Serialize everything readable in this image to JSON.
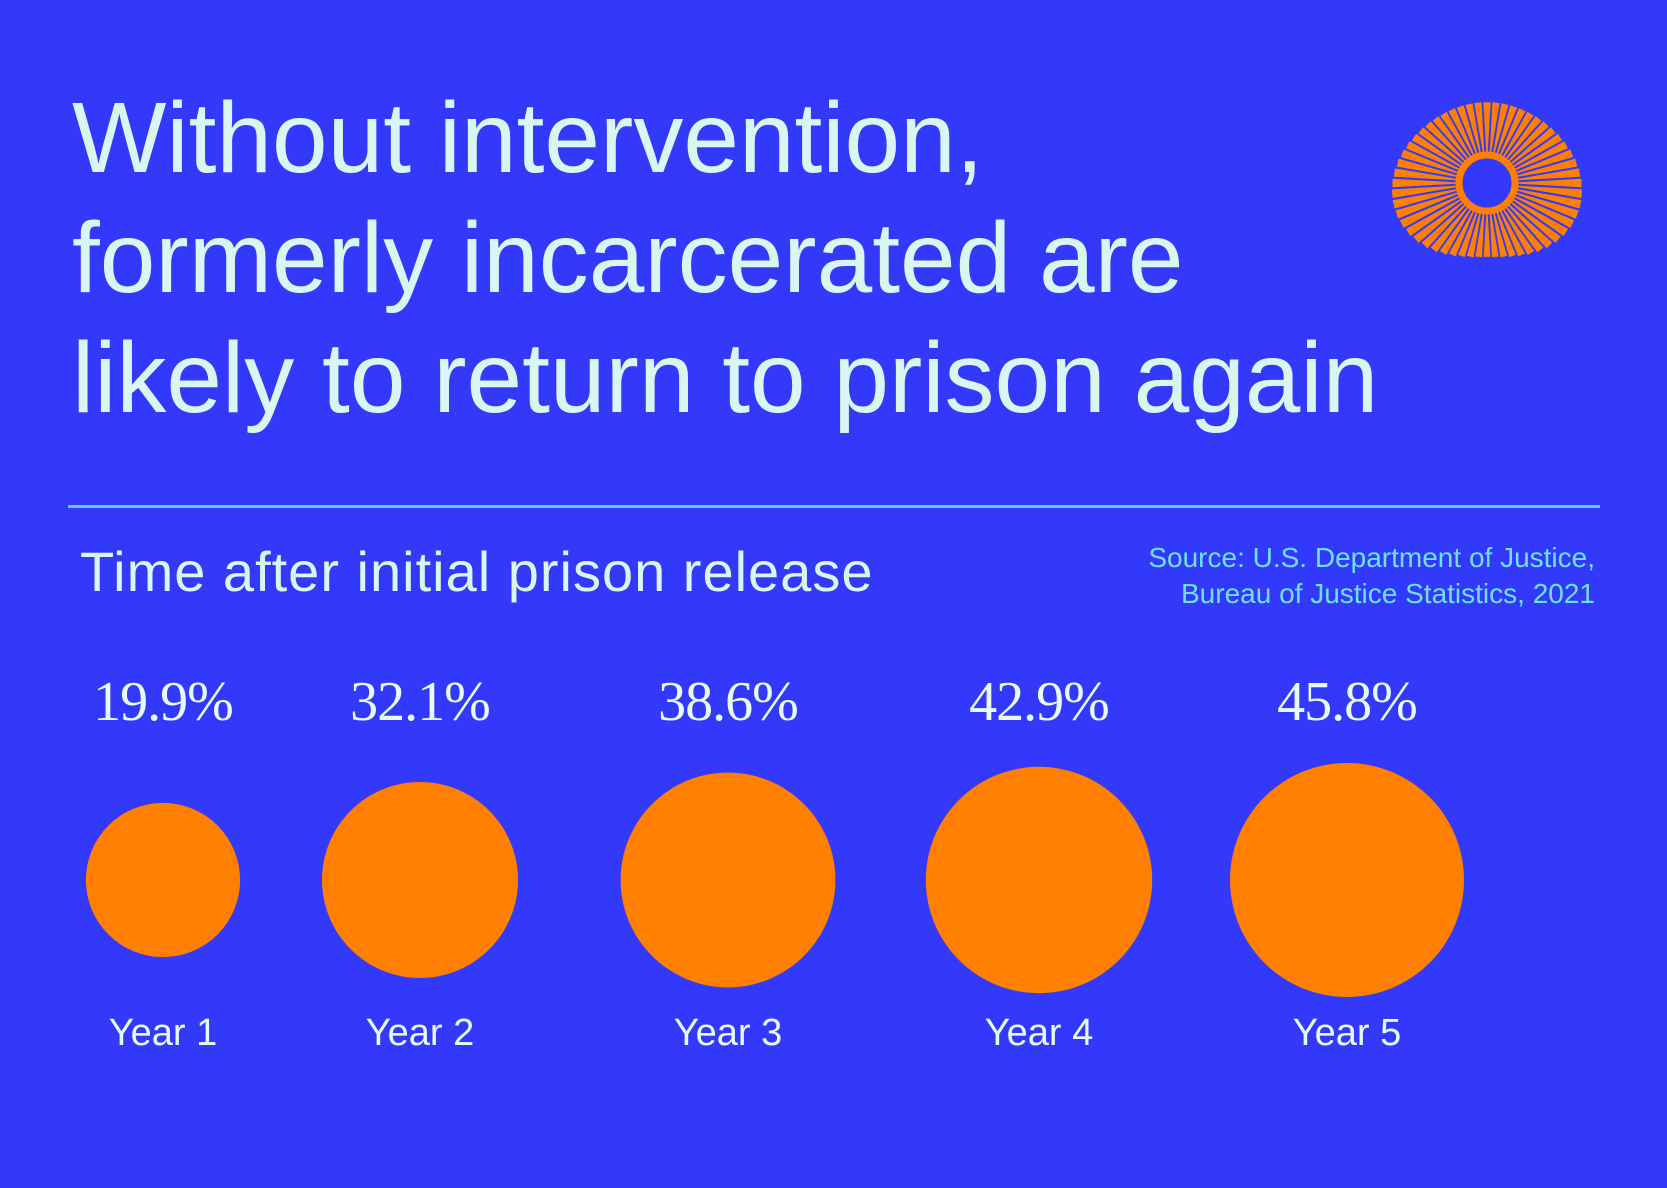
{
  "headline": {
    "line1": "Without intervention,",
    "line2": "formerly incarcerated are",
    "line3": "likely to return to prison again"
  },
  "subtitle": "Time after initial prison release",
  "source": {
    "line1": "Source: U.S. Department of Justice,",
    "line2": "Bureau of Justice Statistics, 2021"
  },
  "colors": {
    "background": "#3339FB",
    "bubble": "#FF7F00",
    "text": "#D9F6F3",
    "accent": "#6EE0F0"
  },
  "chart_data": {
    "type": "bubble",
    "title": "Time after initial prison release",
    "categories": [
      "Year 1",
      "Year 2",
      "Year 3",
      "Year 4",
      "Year 5"
    ],
    "values": [
      19.9,
      32.1,
      38.6,
      42.9,
      45.8
    ],
    "value_labels": [
      "19.9%",
      "32.1%",
      "38.6%",
      "42.9%",
      "45.8%"
    ],
    "unit": "%"
  }
}
